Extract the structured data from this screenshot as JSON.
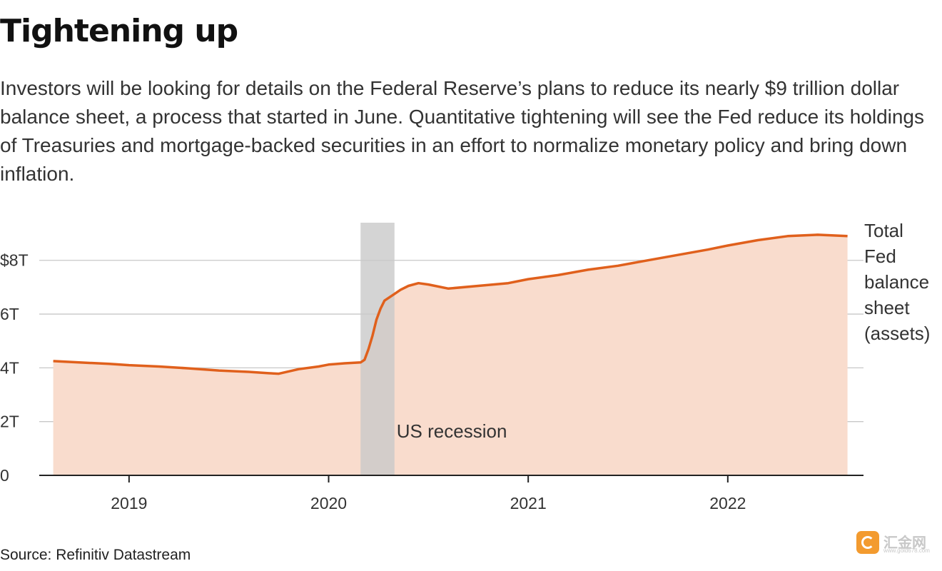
{
  "title": "Tightening up",
  "subtitle": "Investors will be looking for details on the Federal Reserve’s plans to reduce its nearly $9 trillion dollar balance sheet, a process that started in June. Quantitative tightening will see the Fed reduce its holdings of Treasuries and mortgage-backed securities in an effort to normalize monetary policy and bring down inflation.",
  "source": "Source: Refinitiv Datastream",
  "watermark": {
    "brand": "汇金网",
    "url": "www.gold678.com"
  },
  "colors": {
    "line": "#e0601c",
    "area": "#f9dccd",
    "recession": "#c9c9c9",
    "grid": "#c8c8c8",
    "axis": "#222222"
  },
  "chart_data": {
    "type": "area",
    "series": [
      {
        "name": "Total Fed balance sheet (assets)",
        "x": [
          2018.62,
          2018.75,
          2018.9,
          2019.0,
          2019.15,
          2019.3,
          2019.45,
          2019.6,
          2019.7,
          2019.75,
          2019.85,
          2019.95,
          2020.0,
          2020.08,
          2020.16,
          2020.18,
          2020.2,
          2020.22,
          2020.24,
          2020.26,
          2020.28,
          2020.3,
          2020.32,
          2020.36,
          2020.4,
          2020.45,
          2020.5,
          2020.6,
          2020.75,
          2020.9,
          2021.0,
          2021.15,
          2021.3,
          2021.45,
          2021.6,
          2021.75,
          2021.9,
          2022.0,
          2022.15,
          2022.3,
          2022.45,
          2022.6
        ],
        "values": [
          4.25,
          4.2,
          4.15,
          4.1,
          4.05,
          3.98,
          3.9,
          3.85,
          3.8,
          3.78,
          3.95,
          4.05,
          4.12,
          4.17,
          4.2,
          4.3,
          4.7,
          5.2,
          5.8,
          6.2,
          6.5,
          6.6,
          6.7,
          6.9,
          7.05,
          7.15,
          7.1,
          6.95,
          7.05,
          7.15,
          7.3,
          7.45,
          7.65,
          7.8,
          8.0,
          8.2,
          8.4,
          8.55,
          8.75,
          8.9,
          8.95,
          8.9
        ]
      }
    ],
    "series_label_lines": [
      "Total",
      "Fed",
      "balance",
      "sheet",
      "(assets)"
    ],
    "recession": {
      "start": 2020.16,
      "end": 2020.33,
      "label": "US recession"
    },
    "xlim": [
      2018.55,
      2022.68
    ],
    "ylim": [
      0,
      9.4
    ],
    "x_ticks": [
      2019,
      2020,
      2021,
      2022
    ],
    "x_tick_labels": [
      "2019",
      "2020",
      "2021",
      "2022"
    ],
    "y_ticks": [
      0,
      2,
      4,
      6,
      8
    ],
    "y_tick_labels": [
      "0",
      "2T",
      "4T",
      "6T",
      "$8T"
    ],
    "grid": true,
    "xlabel": "",
    "ylabel": ""
  }
}
